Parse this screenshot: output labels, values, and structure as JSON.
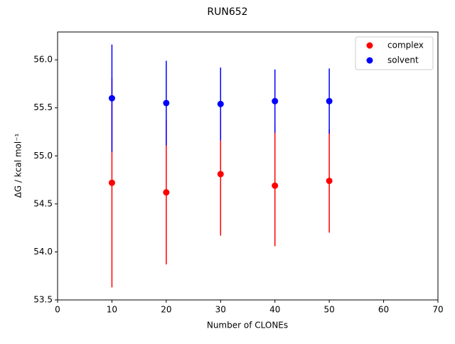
{
  "chart_data": {
    "type": "errorbar-scatter",
    "title": "RUN652",
    "x_label": "Number of CLONEs",
    "y_label": "ΔG / kcal mol⁻¹",
    "x": [
      10,
      20,
      30,
      40,
      50
    ],
    "series": [
      {
        "name": "complex",
        "color": "#ff0000",
        "values": [
          54.72,
          54.62,
          54.81,
          54.69,
          54.74
        ],
        "errors": [
          1.09,
          0.75,
          0.64,
          0.63,
          0.54
        ]
      },
      {
        "name": "solvent",
        "color": "#0000ff",
        "values": [
          55.6,
          55.55,
          55.54,
          55.57,
          55.57
        ],
        "errors": [
          0.56,
          0.44,
          0.38,
          0.33,
          0.34
        ]
      }
    ],
    "xlim": [
      0,
      70
    ],
    "xticks": [
      0,
      10,
      20,
      30,
      40,
      50,
      60,
      70
    ],
    "ylim": [
      53.5,
      56.29
    ],
    "yticks": [
      {
        "value": 53.5,
        "label": "53.5"
      },
      {
        "value": 54,
        "label": "54.0"
      },
      {
        "value": 54.5,
        "label": "54.5"
      },
      {
        "value": 55,
        "label": "55.0"
      },
      {
        "value": 55.5,
        "label": "55.5"
      },
      {
        "value": 56,
        "label": "56.0"
      }
    ],
    "legend": "upper right"
  }
}
